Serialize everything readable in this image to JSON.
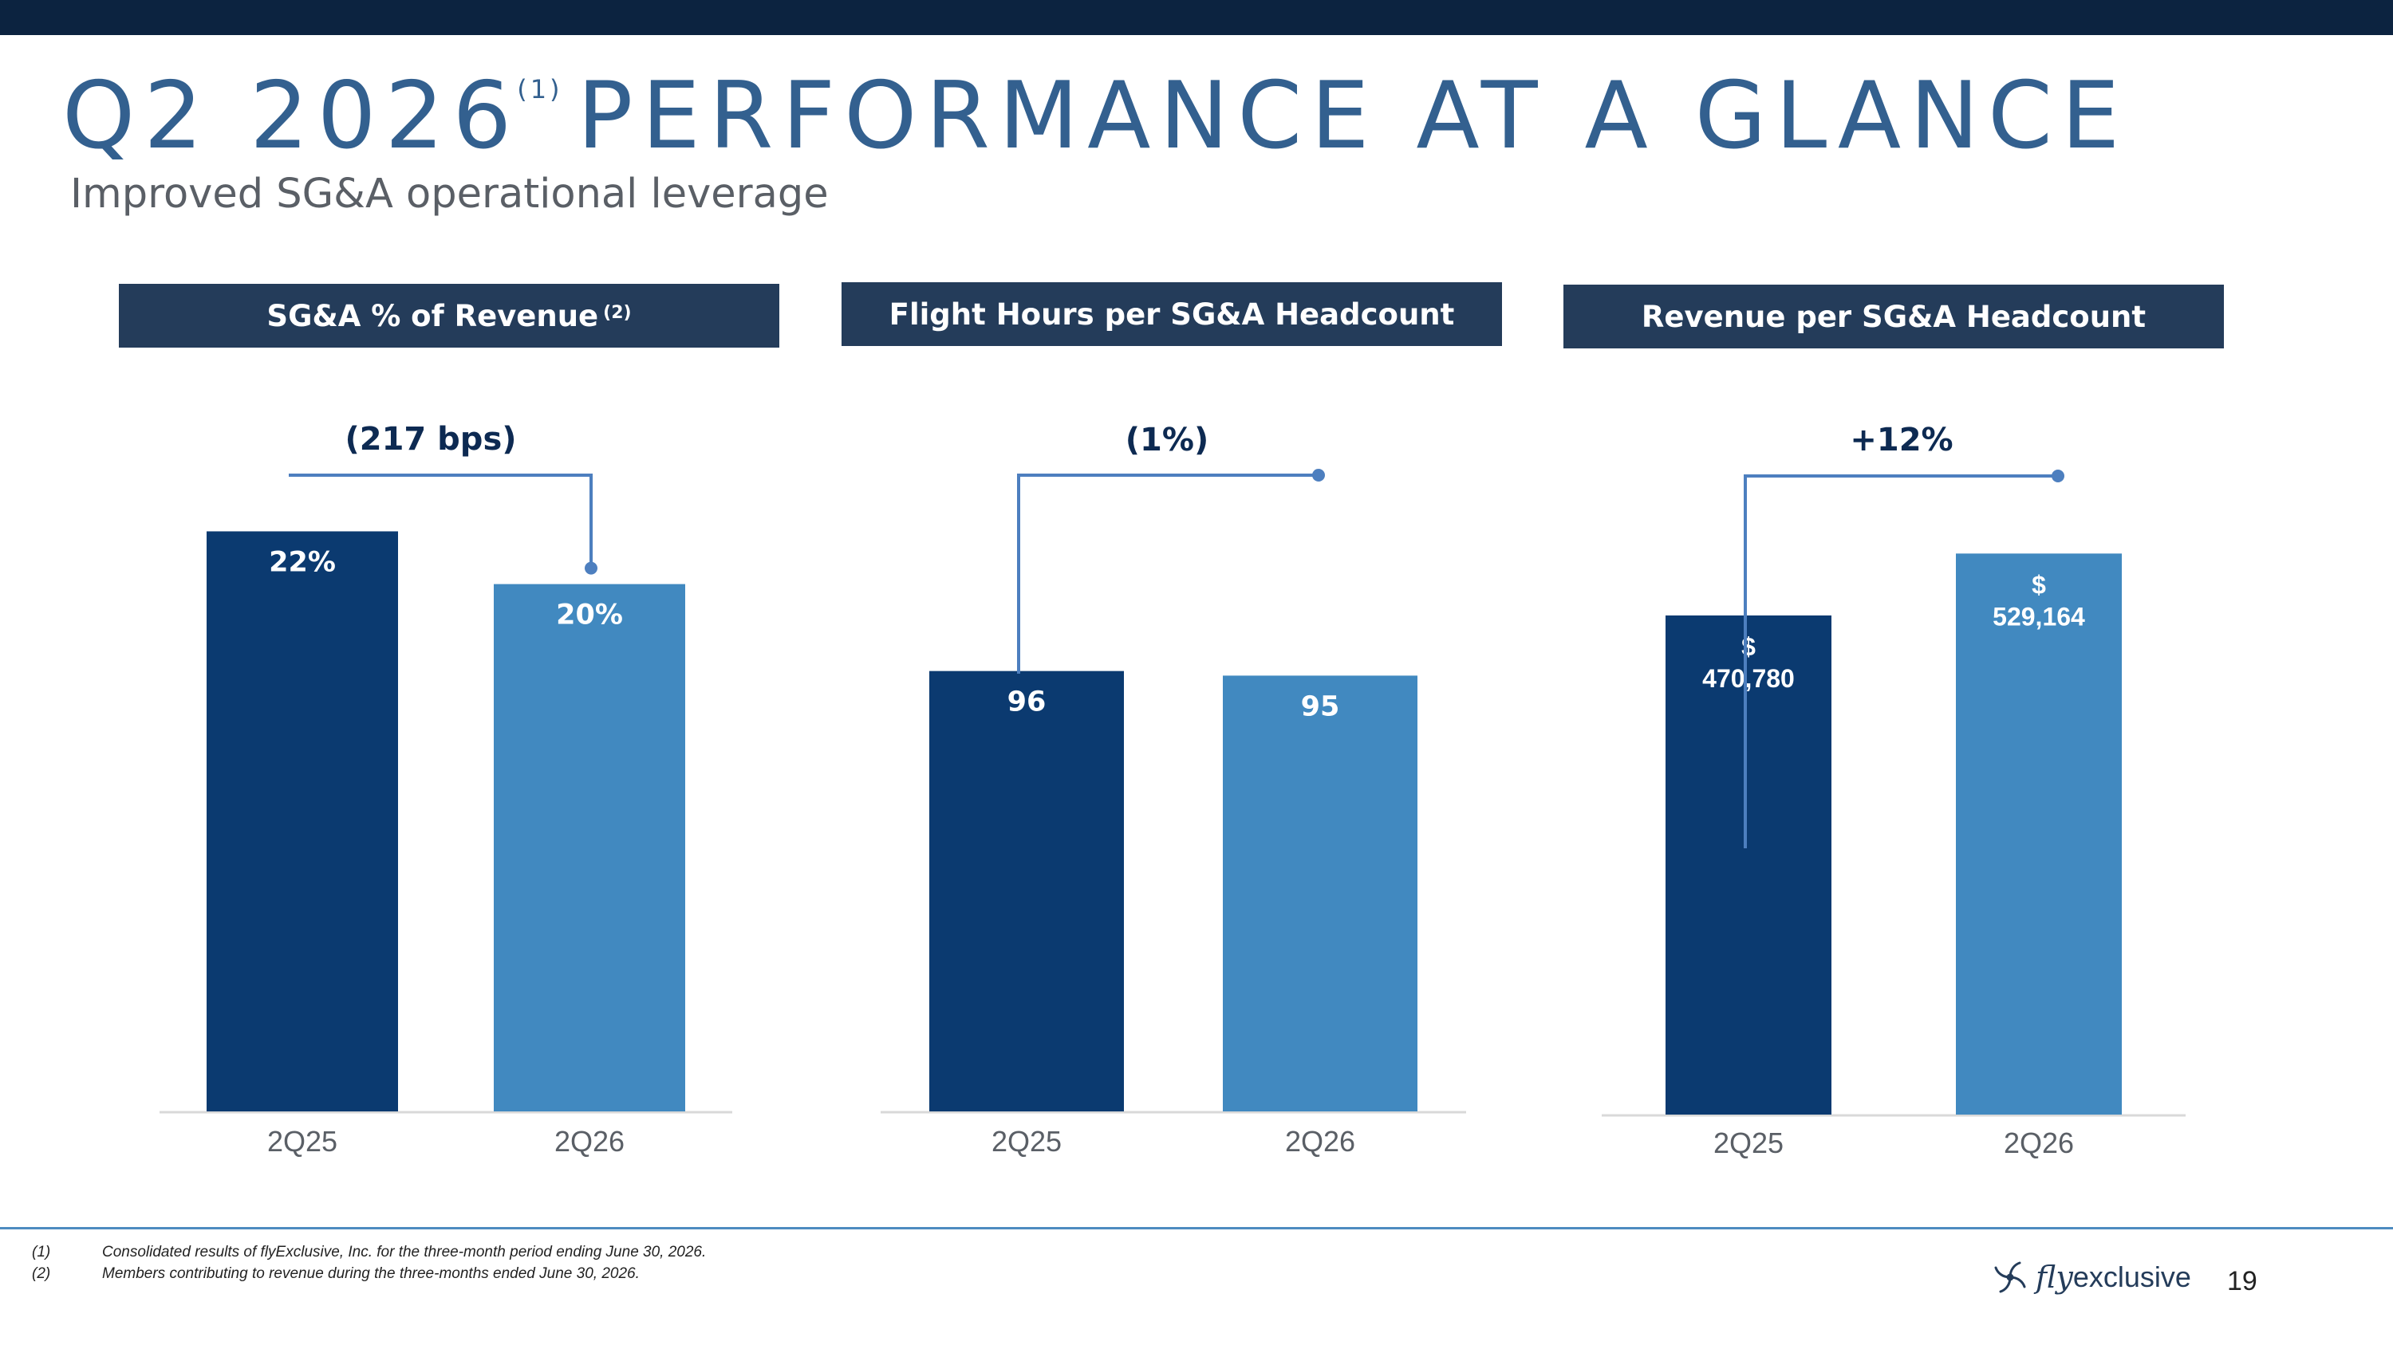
{
  "slide": {
    "title_main": "Q2 2026",
    "title_sup": "(1)",
    "title_rest": "PERFORMANCE AT A GLANCE",
    "subtitle": "Improved SG&A operational leverage",
    "page_number": "19"
  },
  "panels": [
    {
      "header": "SG&A % of Revenue",
      "header_sup": "(2)"
    },
    {
      "header": "Flight Hours per SG&A Headcount",
      "header_sup": ""
    },
    {
      "header": "Revenue per SG&A Headcount",
      "header_sup": ""
    }
  ],
  "chart_data": [
    {
      "type": "bar",
      "title": "SG&A % of Revenue",
      "categories": [
        "2Q25",
        "2Q26"
      ],
      "values": [
        22,
        20
      ],
      "value_labels": [
        "22%",
        "20%"
      ],
      "change_label": "(217 bps)",
      "colors": [
        "#0b3a70",
        "#4189c0"
      ],
      "ylim": [
        0,
        22.8
      ]
    },
    {
      "type": "bar",
      "title": "Flight Hours per SG&A Headcount",
      "categories": [
        "2Q25",
        "2Q26"
      ],
      "values": [
        96,
        95
      ],
      "value_labels": [
        "96",
        "95"
      ],
      "change_label": "(1%)",
      "colors": [
        "#0b3a70",
        "#4189c0"
      ],
      "ylim": [
        0,
        138
      ]
    },
    {
      "type": "bar",
      "title": "Revenue per SG&A Headcount",
      "categories": [
        "2Q25",
        "2Q26"
      ],
      "values": [
        470780,
        529164
      ],
      "value_labels": [
        "$\n470,780",
        "$\n529,164"
      ],
      "change_label": "+12%",
      "colors": [
        "#0b3a70",
        "#4189c0"
      ],
      "ylim": [
        0,
        570000
      ]
    }
  ],
  "footnotes": [
    {
      "num": "(1)",
      "text": "Consolidated results of flyExclusive, Inc. for the three-month period ending June 30, 2026."
    },
    {
      "num": "(2)",
      "text": "Members contributing to revenue during the three-months ended June 30, 2026."
    }
  ],
  "logo": {
    "fly": "fly",
    "exclusive": "exclusive"
  },
  "colors": {
    "top_bar": "#0c2340",
    "title": "#33608f",
    "header_bg": "#243c5a",
    "bar_dark": "#0b3a70",
    "bar_light": "#4189c0",
    "connector": "#4d7fbf"
  }
}
